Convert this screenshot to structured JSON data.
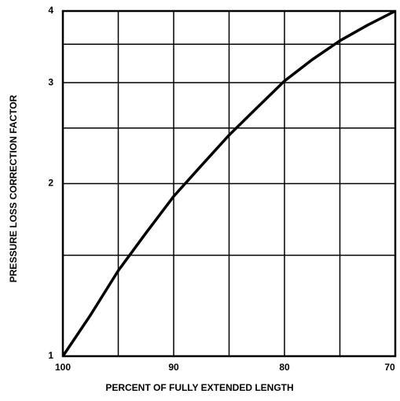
{
  "chart_data": {
    "type": "line",
    "xlabel": "PERCENT OF FULLY EXTENDED LENGTH",
    "ylabel": "PRESSURE LOSS CORRECTION FACTOR",
    "x": [
      100,
      97.5,
      95,
      92.5,
      90,
      87.5,
      85,
      82.5,
      80,
      77.5,
      75,
      72.5,
      70
    ],
    "values": [
      1.0,
      1.18,
      1.41,
      1.64,
      1.9,
      2.15,
      2.43,
      2.71,
      3.02,
      3.29,
      3.55,
      3.78,
      4.0
    ],
    "color": "#000000",
    "xlim": [
      100,
      70
    ],
    "xticks": [
      100,
      90,
      80,
      70
    ],
    "xminor": [
      95,
      85,
      75
    ],
    "ylim": [
      1,
      4
    ],
    "yticks": [
      1,
      2,
      3,
      4
    ],
    "yminor": [
      1.5,
      2.5,
      3.5
    ],
    "log_y": true,
    "grid": true
  }
}
